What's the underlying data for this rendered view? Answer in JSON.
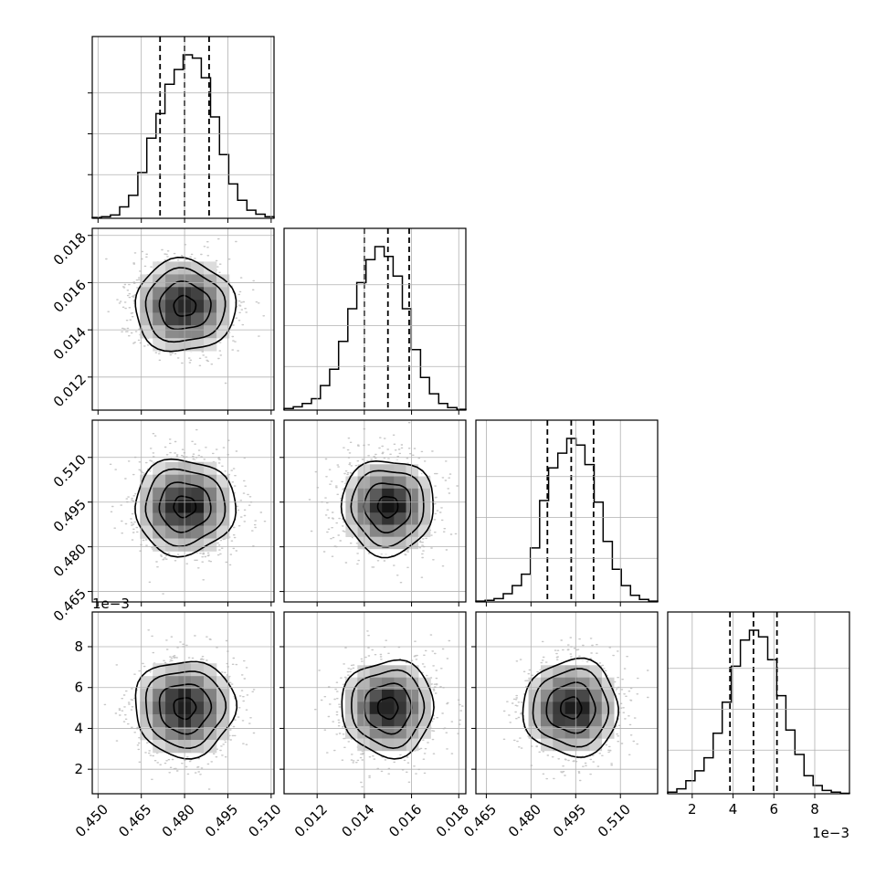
{
  "chart_data": {
    "type": "corner",
    "title": "",
    "parameters": [
      {
        "name": "",
        "unit_offset": "",
        "median": 0.48,
        "q16": 0.4715,
        "q84": 0.4885,
        "sigma": 0.0085,
        "range": [
          0.448,
          0.511
        ],
        "ticks": [
          0.45,
          0.465,
          0.48,
          0.495,
          0.51
        ],
        "tick_labels": [
          "0.450",
          "0.465",
          "0.480",
          "0.495",
          "0.510"
        ]
      },
      {
        "name": "",
        "unit_offset": "",
        "median": 0.015,
        "q16": 0.014,
        "q84": 0.0159,
        "sigma": 0.00095,
        "range": [
          0.0106,
          0.0183
        ],
        "ticks": [
          0.012,
          0.014,
          0.016,
          0.018
        ],
        "tick_labels": [
          "0.012",
          "0.014",
          "0.016",
          "0.018"
        ]
      },
      {
        "name": "",
        "unit_offset": "",
        "median": 0.4935,
        "q16": 0.4855,
        "q84": 0.501,
        "sigma": 0.0078,
        "range": [
          0.4615,
          0.5225
        ],
        "ticks": [
          0.465,
          0.48,
          0.495,
          0.51
        ],
        "tick_labels": [
          "0.465",
          "0.480",
          "0.495",
          "0.510"
        ]
      },
      {
        "name": "",
        "unit_offset": "1e−3",
        "median": 5.0,
        "q16": 3.85,
        "q84": 6.15,
        "sigma": 1.15,
        "range": [
          0.8,
          9.7
        ],
        "ticks": [
          2,
          4,
          6,
          8
        ],
        "tick_labels": [
          "2",
          "4",
          "6",
          "8"
        ]
      }
    ],
    "histograms": [
      {
        "bins": [
          0.448,
          0.4512,
          0.4543,
          0.4575,
          0.4606,
          0.4638,
          0.4669,
          0.4701,
          0.4732,
          0.4764,
          0.4795,
          0.4827,
          0.4858,
          0.489,
          0.4921,
          0.4953,
          0.4984,
          0.5016,
          0.5047,
          0.5079,
          0.511
        ],
        "counts": [
          0.005,
          0.01,
          0.02,
          0.07,
          0.14,
          0.28,
          0.49,
          0.64,
          0.82,
          0.91,
          1.0,
          0.98,
          0.86,
          0.62,
          0.39,
          0.21,
          0.11,
          0.05,
          0.025,
          0.01
        ]
      },
      {
        "bins": [
          0.0106,
          0.01099,
          0.01137,
          0.01176,
          0.01214,
          0.01253,
          0.01291,
          0.0133,
          0.01368,
          0.01407,
          0.01445,
          0.01484,
          0.01522,
          0.01561,
          0.01599,
          0.01638,
          0.01676,
          0.01715,
          0.01753,
          0.01792,
          0.0183
        ],
        "counts": [
          0.01,
          0.02,
          0.04,
          0.07,
          0.15,
          0.25,
          0.42,
          0.62,
          0.78,
          0.92,
          1.0,
          0.94,
          0.82,
          0.62,
          0.37,
          0.2,
          0.1,
          0.04,
          0.015,
          0.005
        ]
      },
      {
        "bins": [
          0.4615,
          0.4646,
          0.4676,
          0.4707,
          0.4737,
          0.4768,
          0.4798,
          0.4829,
          0.4859,
          0.489,
          0.492,
          0.4951,
          0.4981,
          0.5012,
          0.5042,
          0.5073,
          0.5103,
          0.5134,
          0.5164,
          0.5195,
          0.5225
        ],
        "counts": [
          0.005,
          0.01,
          0.02,
          0.05,
          0.1,
          0.17,
          0.33,
          0.62,
          0.82,
          0.91,
          1.0,
          0.96,
          0.84,
          0.61,
          0.37,
          0.2,
          0.1,
          0.04,
          0.015,
          0.005
        ]
      },
      {
        "bins": [
          0.8,
          1.245,
          1.69,
          2.135,
          2.58,
          3.025,
          3.47,
          3.915,
          4.36,
          4.805,
          5.25,
          5.695,
          6.14,
          6.585,
          7.03,
          7.475,
          7.92,
          8.365,
          8.81,
          9.255,
          9.7
        ],
        "counts": [
          0.01,
          0.03,
          0.08,
          0.14,
          0.22,
          0.37,
          0.56,
          0.78,
          0.94,
          1.0,
          0.96,
          0.82,
          0.6,
          0.39,
          0.24,
          0.11,
          0.05,
          0.02,
          0.01,
          0.003
        ]
      }
    ],
    "quantile_lines": "dashed at 16th, 50th, 84th percentiles",
    "contour_levels": 3,
    "grid": true,
    "xlabel": "",
    "ylabel": ""
  }
}
